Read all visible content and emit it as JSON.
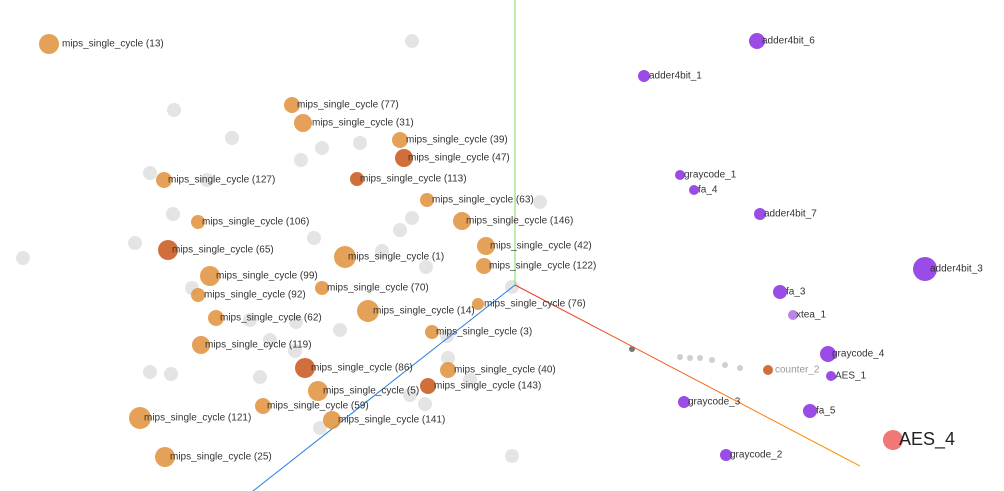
{
  "points": [
    {
      "label": "mips_single_cycle (13)"
    },
    {
      "label": "mips_single_cycle (77)"
    },
    {
      "label": "mips_single_cycle (31)"
    },
    {
      "label": "mips_single_cycle (39)"
    },
    {
      "label": "mips_single_cycle (47)"
    },
    {
      "label": "mips_single_cycle (127)"
    },
    {
      "label": "mips_single_cycle (113)"
    },
    {
      "label": "mips_single_cycle (63)"
    },
    {
      "label": "mips_single_cycle (146)"
    },
    {
      "label": "mips_single_cycle (106)"
    },
    {
      "label": "mips_single_cycle (65)"
    },
    {
      "label": "mips_single_cycle (1)"
    },
    {
      "label": "mips_single_cycle (42)"
    },
    {
      "label": "mips_single_cycle (122)"
    },
    {
      "label": "mips_single_cycle (99)"
    },
    {
      "label": "mips_single_cycle (70)"
    },
    {
      "label": "mips_single_cycle (92)"
    },
    {
      "label": "mips_single_cycle (76)"
    },
    {
      "label": "mips_single_cycle (14)"
    },
    {
      "label": "mips_single_cycle (62)"
    },
    {
      "label": "mips_single_cycle (3)"
    },
    {
      "label": "mips_single_cycle (119)"
    },
    {
      "label": "mips_single_cycle (86)"
    },
    {
      "label": "mips_single_cycle (40)"
    },
    {
      "label": "mips_single_cycle (143)"
    },
    {
      "label": "mips_single_cycle (5)"
    },
    {
      "label": "mips_single_cycle (59)"
    },
    {
      "label": "mips_single_cycle (121)"
    },
    {
      "label": "mips_single_cycle (141)"
    },
    {
      "label": "mips_single_cycle (25)"
    },
    {
      "label": "adder4bit_6"
    },
    {
      "label": "adder4bit_1"
    },
    {
      "label": "graycode_1"
    },
    {
      "label": "fa_4"
    },
    {
      "label": "adder4bit_7"
    },
    {
      "label": "adder4bit_3"
    },
    {
      "label": "fa_3"
    },
    {
      "label": "xtea_1"
    },
    {
      "label": "graycode_4"
    },
    {
      "label": "counter_2"
    },
    {
      "label": "AES_1"
    },
    {
      "label": "graycode_3"
    },
    {
      "label": "fa_5"
    },
    {
      "label": "AES_4"
    },
    {
      "label": "graycode_2"
    }
  ]
}
